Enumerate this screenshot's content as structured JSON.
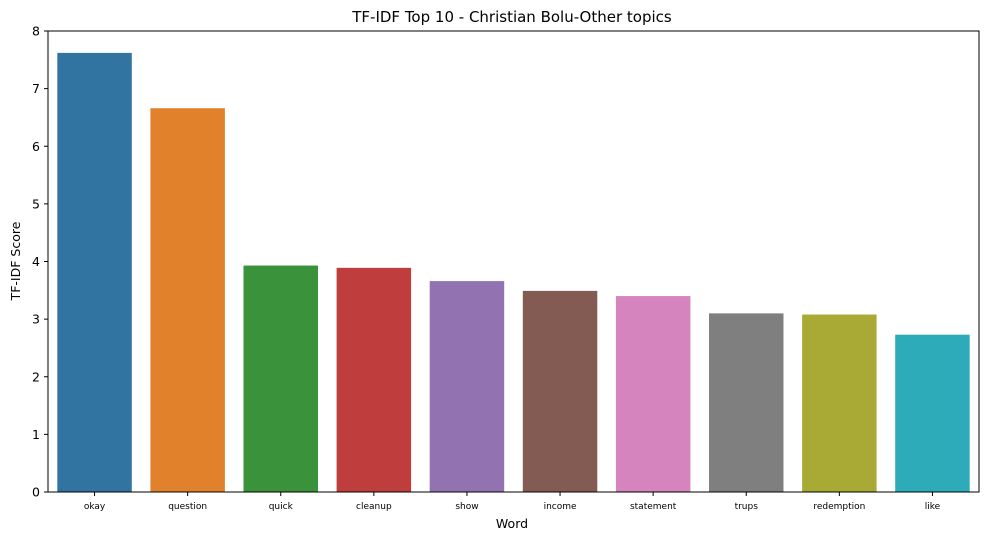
{
  "chart_data": {
    "type": "bar",
    "title": "TF-IDF Top 10 - Christian Bolu-Other topics",
    "xlabel": "Word",
    "ylabel": "TF-IDF Score",
    "categories": [
      "okay",
      "question",
      "quick",
      "cleanup",
      "show",
      "income",
      "statement",
      "trups",
      "redemption",
      "like"
    ],
    "values": [
      7.62,
      6.66,
      3.93,
      3.89,
      3.66,
      3.49,
      3.4,
      3.1,
      3.08,
      2.73
    ],
    "colors": [
      "#3274a1",
      "#e1812c",
      "#3a923a",
      "#c03d3e",
      "#9372b2",
      "#845b53",
      "#d684bd",
      "#7f7f7f",
      "#a9aa35",
      "#2eabb8"
    ],
    "ylim": [
      0,
      8
    ],
    "yticks": [
      0,
      1,
      2,
      3,
      4,
      5,
      6,
      7,
      8
    ],
    "grid": false,
    "legend": "none"
  }
}
